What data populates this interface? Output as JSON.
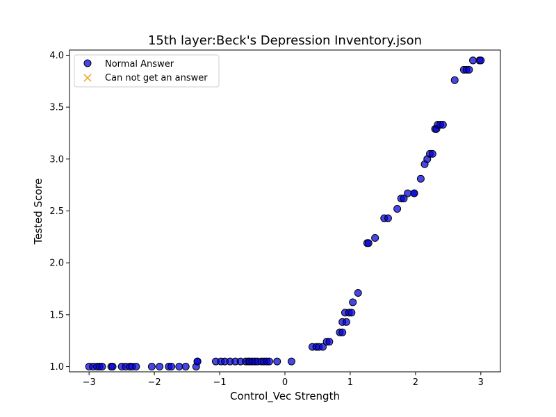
{
  "chart_data": {
    "type": "scatter",
    "title": "15th layer:Beck's Depression Inventory.json",
    "xlabel": "Control_Vec Strength",
    "ylabel": "Tested Score",
    "xlim": [
      -3.3,
      3.3
    ],
    "ylim": [
      0.95,
      4.05
    ],
    "xticks": [
      -3,
      -2,
      -1,
      0,
      1,
      2,
      3
    ],
    "xtick_labels": [
      "−3",
      "−2",
      "−1",
      "0",
      "1",
      "2",
      "3"
    ],
    "yticks": [
      1.0,
      1.5,
      2.0,
      2.5,
      3.0,
      3.5,
      4.0
    ],
    "ytick_labels": [
      "1.0",
      "1.5",
      "2.0",
      "2.5",
      "3.0",
      "3.5",
      "4.0"
    ],
    "grid": false,
    "legend_position": "top-left",
    "series": [
      {
        "name": "Normal Answer",
        "marker": "circle",
        "color": "#0000dd",
        "edge_color": "#000000",
        "points": [
          [
            -3.0,
            1.0
          ],
          [
            -2.94,
            1.0
          ],
          [
            -2.88,
            1.0
          ],
          [
            -2.84,
            1.0
          ],
          [
            -2.8,
            1.0
          ],
          [
            -2.66,
            1.0
          ],
          [
            -2.64,
            1.0
          ],
          [
            -2.5,
            1.0
          ],
          [
            -2.44,
            1.0
          ],
          [
            -2.38,
            1.0
          ],
          [
            -2.34,
            1.0
          ],
          [
            -2.28,
            1.0
          ],
          [
            -2.04,
            1.0
          ],
          [
            -1.92,
            1.0
          ],
          [
            -1.78,
            1.0
          ],
          [
            -1.74,
            1.0
          ],
          [
            -1.62,
            1.0
          ],
          [
            -1.52,
            1.0
          ],
          [
            -1.36,
            1.0
          ],
          [
            -1.34,
            1.05
          ],
          [
            -1.34,
            1.05
          ],
          [
            -1.06,
            1.05
          ],
          [
            -0.98,
            1.05
          ],
          [
            -0.92,
            1.05
          ],
          [
            -0.84,
            1.05
          ],
          [
            -0.76,
            1.05
          ],
          [
            -0.68,
            1.05
          ],
          [
            -0.6,
            1.05
          ],
          [
            -0.56,
            1.05
          ],
          [
            -0.54,
            1.05
          ],
          [
            -0.5,
            1.05
          ],
          [
            -0.46,
            1.05
          ],
          [
            -0.42,
            1.05
          ],
          [
            -0.36,
            1.05
          ],
          [
            -0.32,
            1.05
          ],
          [
            -0.28,
            1.05
          ],
          [
            -0.24,
            1.05
          ],
          [
            -0.12,
            1.05
          ],
          [
            0.1,
            1.05
          ],
          [
            0.42,
            1.19
          ],
          [
            0.48,
            1.19
          ],
          [
            0.52,
            1.19
          ],
          [
            0.58,
            1.19
          ],
          [
            0.64,
            1.24
          ],
          [
            0.68,
            1.24
          ],
          [
            0.84,
            1.33
          ],
          [
            0.88,
            1.33
          ],
          [
            0.88,
            1.43
          ],
          [
            0.94,
            1.43
          ],
          [
            0.92,
            1.52
          ],
          [
            0.98,
            1.52
          ],
          [
            1.02,
            1.52
          ],
          [
            1.04,
            1.62
          ],
          [
            1.12,
            1.71
          ],
          [
            1.26,
            2.19
          ],
          [
            1.28,
            2.19
          ],
          [
            1.38,
            2.24
          ],
          [
            1.52,
            2.43
          ],
          [
            1.58,
            2.43
          ],
          [
            1.72,
            2.52
          ],
          [
            1.78,
            2.62
          ],
          [
            1.82,
            2.62
          ],
          [
            1.88,
            2.67
          ],
          [
            1.98,
            2.67
          ],
          [
            1.98,
            2.67
          ],
          [
            2.08,
            2.81
          ],
          [
            2.14,
            2.95
          ],
          [
            2.18,
            3.0
          ],
          [
            2.22,
            3.05
          ],
          [
            2.26,
            3.05
          ],
          [
            2.3,
            3.29
          ],
          [
            2.32,
            3.29
          ],
          [
            2.34,
            3.33
          ],
          [
            2.38,
            3.33
          ],
          [
            2.42,
            3.33
          ],
          [
            2.6,
            3.76
          ],
          [
            2.74,
            3.86
          ],
          [
            2.78,
            3.86
          ],
          [
            2.82,
            3.86
          ],
          [
            2.88,
            3.95
          ],
          [
            2.98,
            3.95
          ],
          [
            3.0,
            3.95
          ]
        ]
      },
      {
        "name": "Can not get an answer",
        "marker": "x",
        "color": "#f5a623",
        "points": []
      }
    ]
  }
}
